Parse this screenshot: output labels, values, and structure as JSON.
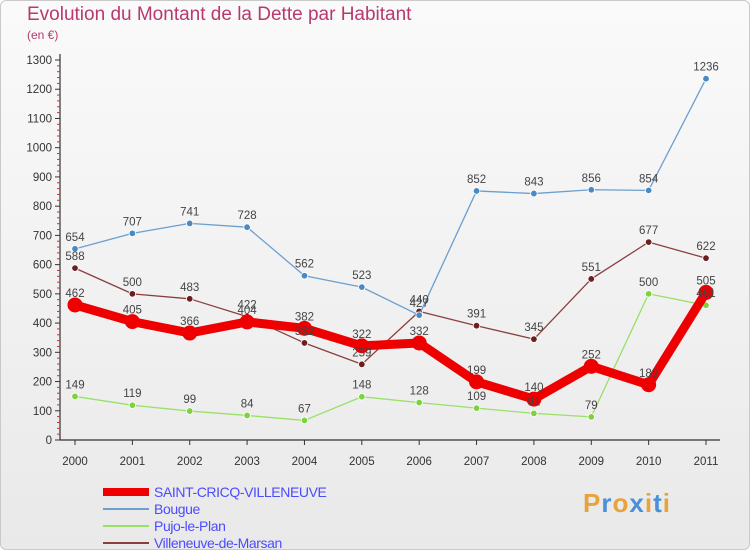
{
  "title": "Evolution du Montant de la Dette par Habitant",
  "subtitle": "(en €)",
  "brand": [
    "P",
    "r",
    "o",
    "x",
    "i",
    "t",
    "i"
  ],
  "brand_colors": [
    "#e8a33c",
    "#4a8fd8",
    "#e8a33c",
    "#4a8fd8",
    "#e8a33c",
    "#4a8fd8",
    "#e8a33c"
  ],
  "chart_data": {
    "type": "line",
    "x": [
      "2000",
      "2001",
      "2002",
      "2003",
      "2004",
      "2005",
      "2006",
      "2007",
      "2008",
      "2009",
      "2010",
      "2011"
    ],
    "ylim": [
      0,
      1300
    ],
    "yticks": [
      "0",
      "100",
      "200",
      "300",
      "400",
      "500",
      "600",
      "700",
      "800",
      "900",
      "1000",
      "1100",
      "1200",
      "1300"
    ],
    "grid": false,
    "legend_position": "bottom-left",
    "series": [
      {
        "name": "SAINT-CRICQ-VILLENEUVE",
        "color": "#ee0000",
        "width": 9,
        "marker": "#ee0000",
        "values": [
          462,
          405,
          366,
          404,
          382,
          322,
          332,
          199,
          140,
          252,
          189,
          505
        ]
      },
      {
        "name": "Bougue",
        "color": "#6a9fd0",
        "width": 1.3,
        "marker": "#4a8ac4",
        "values": [
          654,
          707,
          741,
          728,
          562,
          523,
          427,
          852,
          843,
          856,
          854,
          1236
        ]
      },
      {
        "name": "Pujo-le-Plan",
        "color": "#99e066",
        "width": 1.3,
        "marker": "#7dd23f",
        "values": [
          149,
          119,
          99,
          84,
          67,
          148,
          128,
          109,
          91,
          79,
          500,
          461
        ]
      },
      {
        "name": "Villeneuve-de-Marsan",
        "color": "#8a3f3f",
        "width": 1.3,
        "marker": "#6b1f1f",
        "values": [
          588,
          500,
          483,
          422,
          332,
          259,
          440,
          391,
          345,
          551,
          677,
          622
        ]
      }
    ],
    "labels": [
      {
        "x": 0,
        "y": 654,
        "text": "654"
      },
      {
        "x": 1,
        "y": 707,
        "text": "707"
      },
      {
        "x": 2,
        "y": 741,
        "text": "741"
      },
      {
        "x": 3,
        "y": 728,
        "text": "728"
      },
      {
        "x": 4,
        "y": 562,
        "text": "562"
      },
      {
        "x": 5,
        "y": 523,
        "text": "523"
      },
      {
        "x": 6,
        "y": 427,
        "text": "427"
      },
      {
        "x": 7,
        "y": 852,
        "text": "852"
      },
      {
        "x": 8,
        "y": 843,
        "text": "843"
      },
      {
        "x": 9,
        "y": 856,
        "text": "856"
      },
      {
        "x": 10,
        "y": 854,
        "text": "854"
      },
      {
        "x": 11,
        "y": 1236,
        "text": "1236"
      },
      {
        "x": 0,
        "y": 588,
        "text": "588"
      },
      {
        "x": 1,
        "y": 500,
        "text": "500"
      },
      {
        "x": 2,
        "y": 483,
        "text": "483"
      },
      {
        "x": 3,
        "y": 422,
        "text": "422"
      },
      {
        "x": 4,
        "y": 332,
        "text": "332"
      },
      {
        "x": 5,
        "y": 259,
        "text": "259"
      },
      {
        "x": 6,
        "y": 440,
        "text": "440"
      },
      {
        "x": 7,
        "y": 391,
        "text": "391"
      },
      {
        "x": 8,
        "y": 345,
        "text": "345"
      },
      {
        "x": 9,
        "y": 551,
        "text": "551"
      },
      {
        "x": 10,
        "y": 677,
        "text": "677"
      },
      {
        "x": 11,
        "y": 622,
        "text": "622"
      },
      {
        "x": 0,
        "y": 462,
        "text": "462"
      },
      {
        "x": 1,
        "y": 405,
        "text": "405"
      },
      {
        "x": 2,
        "y": 366,
        "text": "366"
      },
      {
        "x": 3,
        "y": 404,
        "text": "404"
      },
      {
        "x": 4,
        "y": 382,
        "text": "382"
      },
      {
        "x": 5,
        "y": 322,
        "text": "322"
      },
      {
        "x": 6,
        "y": 332,
        "text": "332"
      },
      {
        "x": 7,
        "y": 199,
        "text": "199"
      },
      {
        "x": 8,
        "y": 140,
        "text": "140"
      },
      {
        "x": 9,
        "y": 252,
        "text": "252"
      },
      {
        "x": 10,
        "y": 189,
        "text": "189"
      },
      {
        "x": 11,
        "y": 505,
        "text": "505"
      },
      {
        "x": 0,
        "y": 149,
        "text": "149"
      },
      {
        "x": 1,
        "y": 119,
        "text": "119"
      },
      {
        "x": 2,
        "y": 99,
        "text": "99"
      },
      {
        "x": 3,
        "y": 84,
        "text": "84"
      },
      {
        "x": 4,
        "y": 67,
        "text": "67"
      },
      {
        "x": 5,
        "y": 148,
        "text": "148"
      },
      {
        "x": 6,
        "y": 128,
        "text": "128"
      },
      {
        "x": 7,
        "y": 109,
        "text": "109"
      },
      {
        "x": 8,
        "y": 91,
        "text": "91"
      },
      {
        "x": 9,
        "y": 79,
        "text": "79"
      },
      {
        "x": 10,
        "y": 500,
        "text": "500"
      },
      {
        "x": 11,
        "y": 461,
        "text": "461"
      }
    ]
  }
}
